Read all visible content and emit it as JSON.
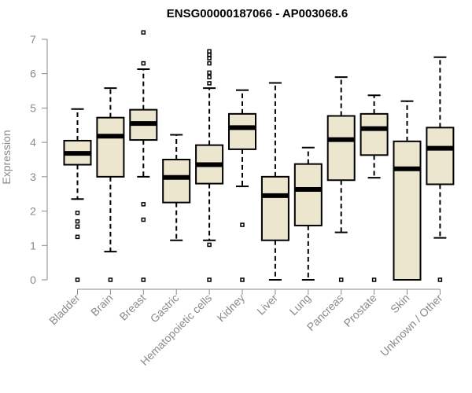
{
  "chart_data": {
    "type": "boxplot",
    "title": "ENSG00000187066 - AP003068.6",
    "xlabel": "",
    "ylabel": "Expression",
    "ylim": [
      0,
      7
    ],
    "yticks": [
      0,
      1,
      2,
      3,
      4,
      5,
      6,
      7
    ],
    "box_fill": "#ede6cf",
    "stroke_color": "#000000",
    "axis_color": "#8a8a8a",
    "categories": [
      "Bladder",
      "Brain",
      "Breast",
      "Gastric",
      "Hematopoietic cells",
      "Kidney",
      "Liver",
      "Lung",
      "Pancreas",
      "Prostate",
      "Skin",
      "Unknown / Other"
    ],
    "series": [
      {
        "category": "Bladder",
        "min": 2.35,
        "q1": 3.35,
        "median": 3.68,
        "q3": 4.05,
        "max": 4.97,
        "outliers": [
          0,
          1.25,
          1.55,
          1.7,
          1.95
        ]
      },
      {
        "category": "Brain",
        "min": 0.82,
        "q1": 3.0,
        "median": 4.18,
        "q3": 4.72,
        "max": 5.58,
        "outliers": [
          0
        ]
      },
      {
        "category": "Breast",
        "min": 3.0,
        "q1": 4.07,
        "median": 4.55,
        "q3": 4.95,
        "max": 6.13,
        "outliers": [
          0,
          1.75,
          2.2,
          6.3,
          7.2
        ]
      },
      {
        "category": "Gastric",
        "min": 1.15,
        "q1": 2.25,
        "median": 2.98,
        "q3": 3.5,
        "max": 4.22,
        "outliers": []
      },
      {
        "category": "Hematopoietic cells",
        "min": 1.15,
        "q1": 2.8,
        "median": 3.35,
        "q3": 3.92,
        "max": 5.58,
        "outliers": [
          0,
          1.02,
          5.72,
          5.9,
          6.03,
          6.3,
          6.45,
          6.55,
          6.65
        ]
      },
      {
        "category": "Kidney",
        "min": 2.72,
        "q1": 3.8,
        "median": 4.43,
        "q3": 4.83,
        "max": 5.52,
        "outliers": [
          0,
          1.6
        ]
      },
      {
        "category": "Liver",
        "min": 0,
        "q1": 1.15,
        "median": 2.45,
        "q3": 3.0,
        "max": 5.73,
        "outliers": []
      },
      {
        "category": "Lung",
        "min": 0,
        "q1": 1.58,
        "median": 2.63,
        "q3": 3.37,
        "max": 3.85,
        "outliers": []
      },
      {
        "category": "Pancreas",
        "min": 1.38,
        "q1": 2.9,
        "median": 4.08,
        "q3": 4.77,
        "max": 5.9,
        "outliers": [
          0
        ]
      },
      {
        "category": "Prostate",
        "min": 2.97,
        "q1": 3.63,
        "median": 4.4,
        "q3": 4.83,
        "max": 5.37,
        "outliers": [
          0
        ]
      },
      {
        "category": "Skin",
        "min": 0,
        "q1": 0,
        "median": 3.23,
        "q3": 4.03,
        "max": 5.2,
        "outliers": []
      },
      {
        "category": "Unknown / Other",
        "min": 1.22,
        "q1": 2.78,
        "median": 3.83,
        "q3": 4.43,
        "max": 6.48,
        "outliers": [
          0
        ]
      }
    ]
  }
}
